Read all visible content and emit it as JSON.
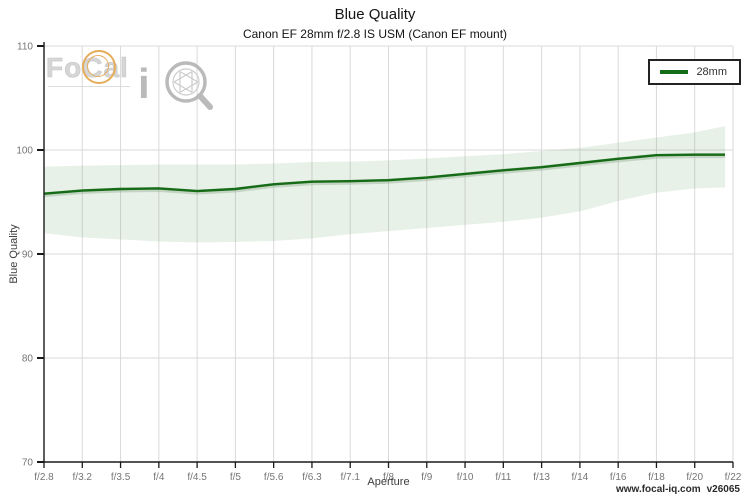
{
  "chart_data": {
    "type": "line",
    "title": "Blue Quality",
    "subtitle": "Canon EF 28mm f/2.8 IS USM (Canon EF mount)",
    "xlabel": "Aperture",
    "ylabel": "Blue Quality",
    "ylim": [
      70,
      110
    ],
    "y_ticks": [
      70,
      80,
      90,
      100,
      110
    ],
    "grid": true,
    "legend_position": "top-right",
    "categories": [
      "f/2.8",
      "f/3.2",
      "f/3.5",
      "f/4",
      "f/4.5",
      "f/5",
      "f/5.6",
      "f/6.3",
      "f/7.1",
      "f/8",
      "f/9",
      "f/10",
      "f/11",
      "f/13",
      "f/14",
      "f/16",
      "f/18",
      "f/20",
      "f/22"
    ],
    "series": [
      {
        "name": "28mm",
        "color": "#166b16",
        "band_color": "#5f9a5f",
        "band_opacity": 0.14,
        "values": [
          95.8,
          96.1,
          96.25,
          96.3,
          96.05,
          96.25,
          96.7,
          96.95,
          97.0,
          97.1,
          97.35,
          97.7,
          98.05,
          98.35,
          98.75,
          99.15,
          99.5,
          99.55,
          99.55
        ],
        "band_lower": [
          92.0,
          91.6,
          91.4,
          91.2,
          91.1,
          91.15,
          91.25,
          91.5,
          91.9,
          92.2,
          92.5,
          92.8,
          93.1,
          93.5,
          94.1,
          95.1,
          95.9,
          96.3,
          96.4
        ],
        "band_upper": [
          98.4,
          98.5,
          98.55,
          98.6,
          98.6,
          98.6,
          98.7,
          98.85,
          98.9,
          99.0,
          99.2,
          99.4,
          99.6,
          99.9,
          100.2,
          100.7,
          101.2,
          101.7,
          102.3
        ]
      }
    ]
  },
  "legend": {
    "items": [
      {
        "label": "28mm",
        "color": "#166b16"
      }
    ]
  },
  "footer": {
    "site": "www.focal-iq.com",
    "version": "v26065"
  },
  "watermark": {
    "fo": "Fo",
    "c": "C",
    "al": "al",
    "i": "i"
  },
  "colors": {
    "line": "#166b16",
    "band_fill": "#e8f0e5",
    "grid": "#d9d9d9",
    "axis": "#1a1a1a",
    "tick_label": "#757575",
    "logo_gray": "#b3b3b3",
    "logo_orange": "#e3a449"
  }
}
